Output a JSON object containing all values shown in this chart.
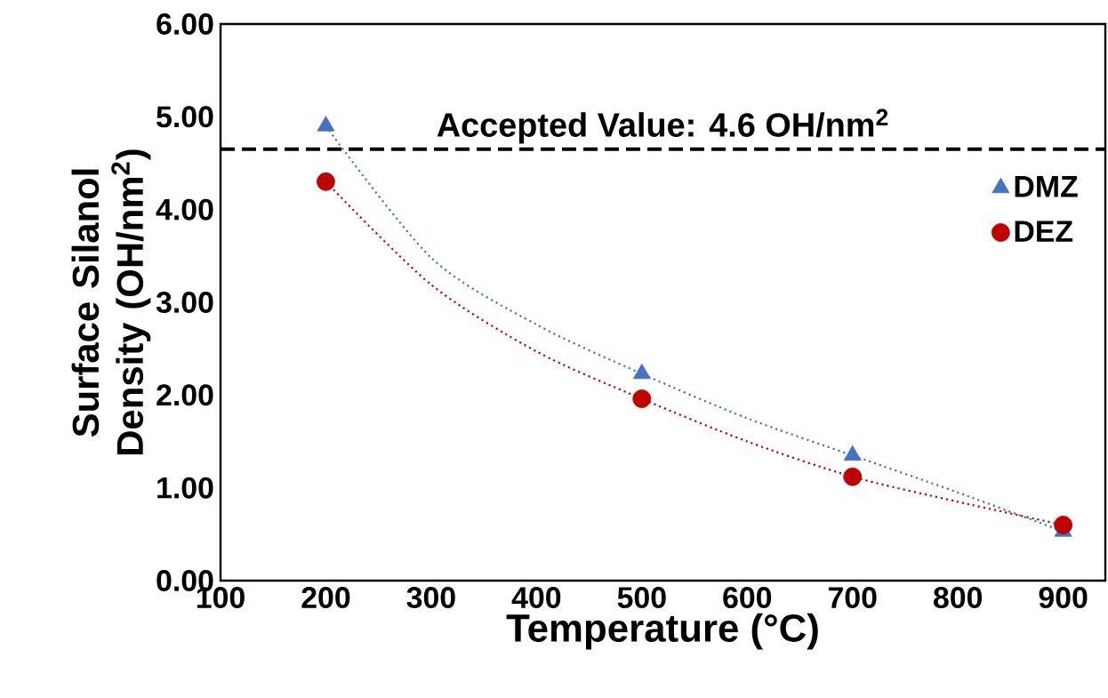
{
  "chart_data": {
    "type": "scatter",
    "xlabel": "Temperature (°C)",
    "ylabel": "Surface Silanol Density (OH/nm$^{2}$)",
    "xlim": [
      100,
      940
    ],
    "ylim": [
      0,
      6
    ],
    "xticks": [
      100,
      200,
      300,
      400,
      500,
      600,
      700,
      800,
      900
    ],
    "yticks": [
      {
        "value": 0,
        "label": "0.00"
      },
      {
        "value": 1,
        "label": "1.00"
      },
      {
        "value": 2,
        "label": "2.00"
      },
      {
        "value": 3,
        "label": "3.00"
      },
      {
        "value": 4,
        "label": "4.00"
      },
      {
        "value": 5,
        "label": "5.00"
      },
      {
        "value": 6,
        "label": "6.00"
      }
    ],
    "grid": false,
    "legend": "top right",
    "ref_lines": [
      {
        "axis": "y",
        "value": 4.65,
        "label": "Accepted Value: 4.6 OH/nm$^{2}$",
        "color": "#000000",
        "line_style": "dashed"
      }
    ],
    "series": [
      {
        "name": "DMZ",
        "marker": "triangle",
        "color": "#4472c4",
        "x": [
          200,
          500,
          700,
          900
        ],
        "values": [
          4.9,
          2.23,
          1.35,
          0.53
        ]
      },
      {
        "name": "DEZ",
        "marker": "circle",
        "color": "#c00000",
        "x": [
          200,
          500,
          700,
          900
        ],
        "values": [
          4.3,
          1.96,
          1.12,
          0.6
        ]
      },
      {
        "type": "line",
        "line_style": "dotted",
        "marker": "none",
        "color": "#4472c4",
        "x": [
          200,
          300,
          400,
          500,
          600,
          700,
          800,
          900
        ],
        "values": [
          4.9,
          3.48,
          2.76,
          2.23,
          1.75,
          1.35,
          0.95,
          0.53
        ]
      },
      {
        "type": "line",
        "line_style": "dotted",
        "marker": "none",
        "color": "#c00000",
        "x": [
          200,
          300,
          400,
          500,
          600,
          700,
          800,
          900
        ],
        "values": [
          4.3,
          3.19,
          2.47,
          1.96,
          1.5,
          1.12,
          0.85,
          0.6
        ]
      }
    ]
  }
}
